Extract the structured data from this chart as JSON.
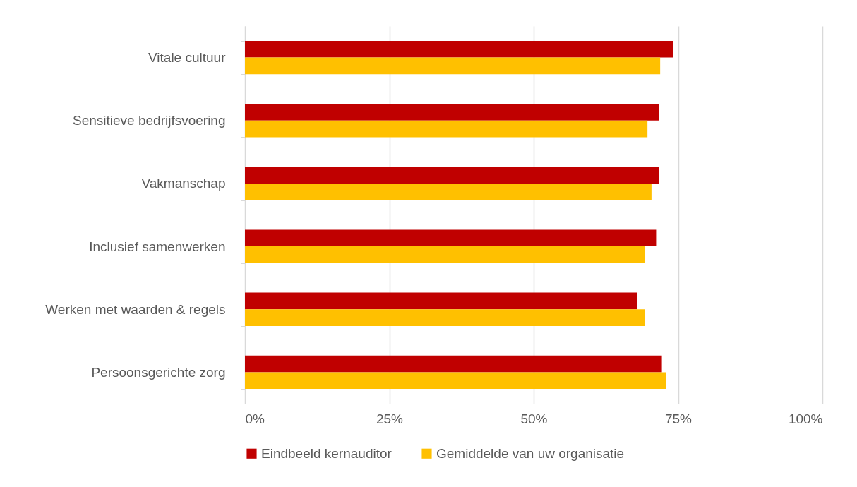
{
  "chart_data": {
    "type": "bar",
    "orientation": "horizontal",
    "categories": [
      "Vitale cultuur",
      "Sensitieve bedrijfsvoering",
      "Vakmanschap",
      "Inclusief samenwerken",
      "Werken met waarden & regels",
      "Persoonsgerichte zorg"
    ],
    "series": [
      {
        "name": "Eindbeeld kernauditor",
        "color": "#c00000",
        "values": [
          74.1,
          71.7,
          71.7,
          71.2,
          67.9,
          72.2
        ]
      },
      {
        "name": "Gemiddelde van uw organisatie",
        "color": "#ffc000",
        "values": [
          71.9,
          69.7,
          70.4,
          69.3,
          69.2,
          72.9
        ]
      }
    ],
    "xlim": [
      0,
      100
    ],
    "xticks": [
      {
        "value": 0,
        "label": "0%"
      },
      {
        "value": 25,
        "label": "25%"
      },
      {
        "value": 50,
        "label": "50%"
      },
      {
        "value": 75,
        "label": "75%"
      },
      {
        "value": 100,
        "label": "100%"
      }
    ],
    "grid": "x",
    "legend": "bottom"
  }
}
